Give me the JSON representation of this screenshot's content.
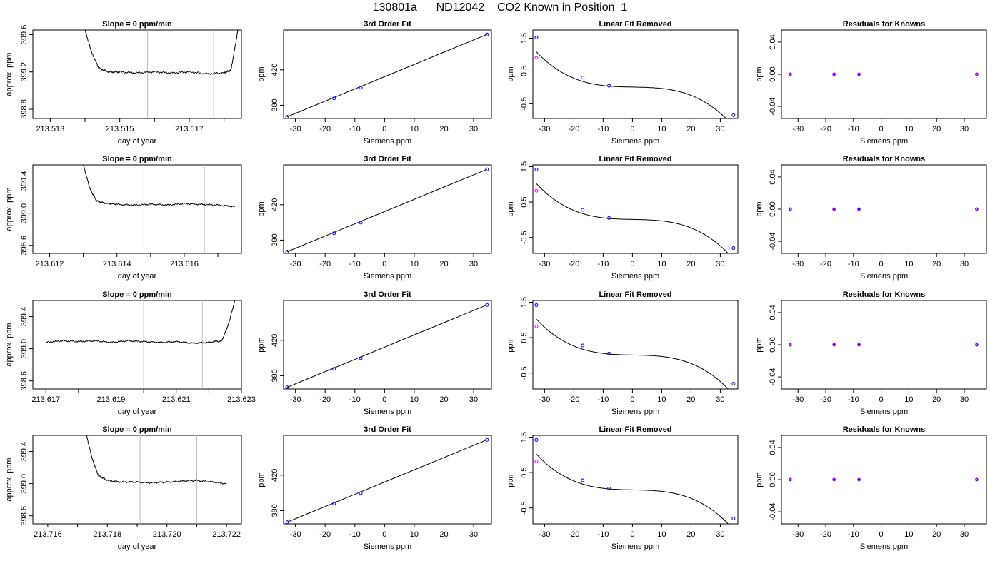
{
  "title": "130801a      ND12042    CO2 Known in Position  1",
  "colors": {
    "line": "#000000",
    "grid": "#bebebe",
    "known": "#0000ff",
    "calc": "#ff00ff"
  },
  "chart_data": [
    {
      "type": "line",
      "row": 0,
      "col": 0,
      "title": "Slope =  0  ppm/min",
      "xlabel": "day of year",
      "ylabel": "approx. ppm",
      "xlim": [
        213.5125,
        213.5185
      ],
      "ylim": [
        398.7,
        399.65
      ],
      "xticks": [
        213.513,
        213.514,
        213.515,
        213.516,
        213.517,
        213.518
      ],
      "xtick_labels": [
        "213.513",
        "",
        "213.515",
        "",
        "213.517",
        ""
      ],
      "yticks": [
        398.8,
        399.2,
        399.6
      ],
      "ytick_labels": [
        "398.8",
        "399.2",
        "399.6"
      ],
      "vlines": [
        213.5158,
        213.5177
      ],
      "x": [
        213.514,
        213.5142,
        213.5144,
        213.5147,
        213.515,
        213.5155,
        213.516,
        213.5165,
        213.517,
        213.5175,
        213.518,
        213.5182,
        213.5184
      ],
      "y": [
        399.65,
        399.4,
        399.24,
        399.2,
        399.2,
        399.19,
        399.2,
        399.19,
        399.2,
        399.18,
        399.19,
        399.22,
        399.65
      ]
    },
    {
      "type": "scatter",
      "row": 0,
      "col": 1,
      "title": "3rd Order Fit",
      "xlabel": "Siemens ppm",
      "ylabel": "ppm",
      "xlim": [
        -34,
        36
      ],
      "ylim": [
        365,
        465
      ],
      "xticks": [
        -30,
        -20,
        -10,
        0,
        10,
        20,
        30
      ],
      "xtick_labels": [
        "-30",
        "-20",
        "-10",
        "0",
        "10",
        "20",
        "30"
      ],
      "yticks": [
        380,
        420
      ],
      "ytick_labels": [
        "380",
        "420"
      ],
      "points": [
        [
          -32.8,
          366.9
        ],
        [
          -17.0,
          387.8
        ],
        [
          -8.0,
          399.8
        ],
        [
          34.5,
          460.0
        ]
      ],
      "fit": [
        [
          -32.8,
          366.9
        ],
        [
          34.5,
          460.0
        ]
      ]
    },
    {
      "type": "scatter",
      "row": 0,
      "col": 2,
      "title": "Linear Fit Removed",
      "xlabel": "Siemens ppm",
      "ylabel": "ppm",
      "xlim": [
        -34,
        36
      ],
      "ylim": [
        -0.95,
        1.75
      ],
      "xticks": [
        -30,
        -20,
        -10,
        0,
        10,
        20,
        30
      ],
      "xtick_labels": [
        "-30",
        "-20",
        "-10",
        "0",
        "10",
        "20",
        "30"
      ],
      "yticks": [
        -0.5,
        0.5,
        1.5
      ],
      "ytick_labels": [
        "-0.5",
        "0.5",
        "1.5"
      ],
      "known": [
        [
          -32.8,
          1.52
        ],
        [
          -17.0,
          0.3
        ],
        [
          -8.0,
          0.05
        ],
        [
          34.5,
          -0.85
        ]
      ],
      "calc": [
        [
          -32.8,
          0.9
        ]
      ],
      "cubic": {
        "a": 0.0097,
        "b": -0.0017,
        "c": 1.87e-05,
        "d": -2.83e-05
      }
    },
    {
      "type": "scatter",
      "row": 0,
      "col": 3,
      "title": "Residuals for Knowns",
      "xlabel": "Siemens ppm",
      "ylabel": "ppm",
      "xlim": [
        -36,
        38
      ],
      "ylim": [
        -0.055,
        0.055
      ],
      "xticks": [
        -30,
        -20,
        -10,
        0,
        10,
        20,
        30
      ],
      "xtick_labels": [
        "-30",
        "-20",
        "-10",
        "0",
        "10",
        "20",
        "30"
      ],
      "yticks": [
        -0.04,
        0.0,
        0.04
      ],
      "ytick_labels": [
        "-0.04",
        "0.00",
        "0.04"
      ],
      "points": [
        [
          -32.8,
          0
        ],
        [
          -17.0,
          0
        ],
        [
          -8.0,
          0
        ],
        [
          34.5,
          0
        ]
      ]
    },
    {
      "type": "line",
      "row": 1,
      "col": 0,
      "title": "Slope =  0  ppm/min",
      "xlabel": "day of year",
      "ylabel": "approx. ppm",
      "xlim": [
        213.6115,
        213.6177
      ],
      "ylim": [
        398.5,
        399.6
      ],
      "xticks": [
        213.612,
        213.613,
        213.614,
        213.615,
        213.616,
        213.617
      ],
      "xtick_labels": [
        "213.612",
        "",
        "213.614",
        "",
        "213.616",
        ""
      ],
      "yticks": [
        398.6,
        399.0,
        399.4
      ],
      "ytick_labels": [
        "398.6",
        "399.0",
        "399.4"
      ],
      "vlines": [
        213.6148,
        213.6166
      ],
      "x": [
        213.613,
        213.6132,
        213.6134,
        213.6137,
        213.614,
        213.6145,
        213.615,
        213.6155,
        213.616,
        213.6165,
        213.617,
        213.6175
      ],
      "y": [
        399.6,
        399.3,
        399.15,
        399.12,
        399.11,
        399.1,
        399.11,
        399.1,
        399.12,
        399.11,
        399.1,
        399.08
      ]
    },
    {
      "type": "scatter",
      "row": 1,
      "col": 1,
      "title": "3rd Order Fit",
      "xlabel": "Siemens ppm",
      "ylabel": "ppm",
      "xlim": [
        -34,
        36
      ],
      "ylim": [
        365,
        465
      ],
      "xticks": [
        -30,
        -20,
        -10,
        0,
        10,
        20,
        30
      ],
      "xtick_labels": [
        "-30",
        "-20",
        "-10",
        "0",
        "10",
        "20",
        "30"
      ],
      "yticks": [
        380,
        420
      ],
      "ytick_labels": [
        "380",
        "420"
      ],
      "points": [
        [
          -32.8,
          366.9
        ],
        [
          -17.0,
          387.8
        ],
        [
          -8.0,
          399.8
        ],
        [
          34.5,
          460.0
        ]
      ],
      "fit": [
        [
          -32.8,
          366.9
        ],
        [
          34.5,
          460.0
        ]
      ]
    },
    {
      "type": "scatter",
      "row": 1,
      "col": 2,
      "title": "Linear Fit Removed",
      "xlabel": "Siemens ppm",
      "ylabel": "ppm",
      "xlim": [
        -34,
        36
      ],
      "ylim": [
        -0.95,
        1.55
      ],
      "xticks": [
        -30,
        -20,
        -10,
        0,
        10,
        20,
        30
      ],
      "xtick_labels": [
        "-30",
        "-20",
        "-10",
        "0",
        "10",
        "20",
        "30"
      ],
      "yticks": [
        -0.5,
        0.5,
        1.5
      ],
      "ytick_labels": [
        "-0.5",
        "0.5",
        "1.5"
      ],
      "known": [
        [
          -32.8,
          1.42
        ],
        [
          -17.0,
          0.28
        ],
        [
          -8.0,
          0.05
        ],
        [
          34.5,
          -0.8
        ]
      ],
      "calc": [
        [
          -32.8,
          0.82
        ]
      ],
      "cubic": {
        "a": 0.0097,
        "b": -0.0017,
        "c": 1.87e-05,
        "d": -2.65e-05
      }
    },
    {
      "type": "scatter",
      "row": 1,
      "col": 3,
      "title": "Residuals for Knowns",
      "xlabel": "Siemens ppm",
      "ylabel": "ppm",
      "xlim": [
        -36,
        38
      ],
      "ylim": [
        -0.055,
        0.055
      ],
      "xticks": [
        -30,
        -20,
        -10,
        0,
        10,
        20,
        30
      ],
      "xtick_labels": [
        "-30",
        "-20",
        "-10",
        "0",
        "10",
        "20",
        "30"
      ],
      "yticks": [
        -0.04,
        0.0,
        0.04
      ],
      "ytick_labels": [
        "-0.04",
        "0.00",
        "0.04"
      ],
      "points": [
        [
          -32.8,
          0
        ],
        [
          -17.0,
          0
        ],
        [
          -8.0,
          0
        ],
        [
          34.5,
          0
        ]
      ]
    },
    {
      "type": "line",
      "row": 2,
      "col": 0,
      "title": "Slope =  0  ppm/min",
      "xlabel": "day of year",
      "ylabel": "approx. ppm",
      "xlim": [
        213.6166,
        213.623
      ],
      "ylim": [
        398.5,
        399.6
      ],
      "xticks": [
        213.617,
        213.618,
        213.619,
        213.62,
        213.621,
        213.622,
        213.623
      ],
      "xtick_labels": [
        "213.617",
        "",
        "213.619",
        "",
        "213.621",
        "",
        "213.623"
      ],
      "yticks": [
        398.6,
        399.0,
        399.4
      ],
      "ytick_labels": [
        "398.6",
        "399.0",
        "399.4"
      ],
      "vlines": [
        213.62,
        213.6218
      ],
      "x": [
        213.617,
        213.6175,
        213.618,
        213.6185,
        213.619,
        213.6195,
        213.62,
        213.6205,
        213.621,
        213.6215,
        213.622,
        213.6224,
        213.6226,
        213.6228
      ],
      "y": [
        399.08,
        399.1,
        399.09,
        399.1,
        399.08,
        399.1,
        399.09,
        399.08,
        399.09,
        399.07,
        399.08,
        399.1,
        399.3,
        399.6
      ]
    },
    {
      "type": "scatter",
      "row": 2,
      "col": 1,
      "title": "3rd Order Fit",
      "xlabel": "Siemens ppm",
      "ylabel": "ppm",
      "xlim": [
        -34,
        36
      ],
      "ylim": [
        365,
        465
      ],
      "xticks": [
        -30,
        -20,
        -10,
        0,
        10,
        20,
        30
      ],
      "xtick_labels": [
        "-30",
        "-20",
        "-10",
        "0",
        "10",
        "20",
        "30"
      ],
      "yticks": [
        380,
        420
      ],
      "ytick_labels": [
        "380",
        "420"
      ],
      "points": [
        [
          -32.8,
          366.9
        ],
        [
          -17.0,
          387.8
        ],
        [
          -8.0,
          399.8
        ],
        [
          34.5,
          460.0
        ]
      ],
      "fit": [
        [
          -32.8,
          366.9
        ],
        [
          34.5,
          460.0
        ]
      ]
    },
    {
      "type": "scatter",
      "row": 2,
      "col": 2,
      "title": "Linear Fit Removed",
      "xlabel": "Siemens ppm",
      "ylabel": "ppm",
      "xlim": [
        -34,
        36
      ],
      "ylim": [
        -0.95,
        1.55
      ],
      "xticks": [
        -30,
        -20,
        -10,
        0,
        10,
        20,
        30
      ],
      "xtick_labels": [
        "-30",
        "-20",
        "-10",
        "0",
        "10",
        "20",
        "30"
      ],
      "yticks": [
        -0.5,
        0.5,
        1.5
      ],
      "ytick_labels": [
        "-0.5",
        "0.5",
        "1.5"
      ],
      "known": [
        [
          -32.8,
          1.42
        ],
        [
          -17.0,
          0.28
        ],
        [
          -8.0,
          0.05
        ],
        [
          34.5,
          -0.8
        ]
      ],
      "calc": [
        [
          -32.8,
          0.82
        ]
      ],
      "cubic": {
        "a": 0.0097,
        "b": -0.0017,
        "c": 1.87e-05,
        "d": -2.65e-05
      }
    },
    {
      "type": "scatter",
      "row": 2,
      "col": 3,
      "title": "Residuals for Knowns",
      "xlabel": "Siemens ppm",
      "ylabel": "ppm",
      "xlim": [
        -36,
        38
      ],
      "ylim": [
        -0.055,
        0.055
      ],
      "xticks": [
        -30,
        -20,
        -10,
        0,
        10,
        20,
        30
      ],
      "xtick_labels": [
        "-30",
        "-20",
        "-10",
        "0",
        "10",
        "20",
        "30"
      ],
      "yticks": [
        -0.04,
        0.0,
        0.04
      ],
      "ytick_labels": [
        "-0.04",
        "0.00",
        "0.04"
      ],
      "points": [
        [
          -32.8,
          0
        ],
        [
          -17.0,
          0
        ],
        [
          -8.0,
          0
        ],
        [
          34.5,
          0
        ]
      ]
    },
    {
      "type": "line",
      "row": 3,
      "col": 0,
      "title": "Slope =  0  ppm/min",
      "xlabel": "day of year",
      "ylabel": "approx. ppm",
      "xlim": [
        213.7155,
        213.7225
      ],
      "ylim": [
        398.5,
        399.6
      ],
      "xticks": [
        213.716,
        213.717,
        213.718,
        213.719,
        213.72,
        213.721,
        213.722
      ],
      "xtick_labels": [
        "213.716",
        "",
        "213.718",
        "",
        "213.720",
        "",
        "213.722"
      ],
      "yticks": [
        398.6,
        399.0,
        399.4
      ],
      "ytick_labels": [
        "398.6",
        "399.0",
        "399.4"
      ],
      "vlines": [
        213.7191,
        213.721
      ],
      "x": [
        213.7173,
        213.7175,
        213.7177,
        213.718,
        213.7185,
        213.719,
        213.7195,
        213.72,
        213.7205,
        213.721,
        213.7215,
        213.722
      ],
      "y": [
        399.6,
        399.3,
        399.1,
        399.04,
        399.02,
        399.02,
        399.01,
        399.02,
        399.03,
        399.04,
        399.02,
        399.0
      ]
    },
    {
      "type": "scatter",
      "row": 3,
      "col": 1,
      "title": "3rd Order Fit",
      "xlabel": "Siemens ppm",
      "ylabel": "ppm",
      "xlim": [
        -34,
        36
      ],
      "ylim": [
        365,
        465
      ],
      "xticks": [
        -30,
        -20,
        -10,
        0,
        10,
        20,
        30
      ],
      "xtick_labels": [
        "-30",
        "-20",
        "-10",
        "0",
        "10",
        "20",
        "30"
      ],
      "yticks": [
        380,
        420
      ],
      "ytick_labels": [
        "380",
        "420"
      ],
      "points": [
        [
          -32.8,
          366.9
        ],
        [
          -17.0,
          387.8
        ],
        [
          -8.0,
          399.8
        ],
        [
          34.5,
          460.0
        ]
      ],
      "fit": [
        [
          -32.8,
          366.9
        ],
        [
          34.5,
          460.0
        ]
      ]
    },
    {
      "type": "scatter",
      "row": 3,
      "col": 2,
      "title": "Linear Fit Removed",
      "xlabel": "Siemens ppm",
      "ylabel": "ppm",
      "xlim": [
        -34,
        36
      ],
      "ylim": [
        -0.95,
        1.55
      ],
      "xticks": [
        -30,
        -20,
        -10,
        0,
        10,
        20,
        30
      ],
      "xtick_labels": [
        "-30",
        "-20",
        "-10",
        "0",
        "10",
        "20",
        "30"
      ],
      "yticks": [
        -0.5,
        0.5,
        1.5
      ],
      "ytick_labels": [
        "-0.5",
        "0.5",
        "1.5"
      ],
      "known": [
        [
          -32.8,
          1.42
        ],
        [
          -17.0,
          0.28
        ],
        [
          -8.0,
          0.05
        ],
        [
          34.5,
          -0.8
        ]
      ],
      "calc": [
        [
          -32.8,
          0.82
        ]
      ],
      "cubic": {
        "a": 0.0097,
        "b": -0.0017,
        "c": 1.87e-05,
        "d": -2.65e-05
      }
    },
    {
      "type": "scatter",
      "row": 3,
      "col": 3,
      "title": "Residuals for Knowns",
      "xlabel": "Siemens ppm",
      "ylabel": "ppm",
      "xlim": [
        -36,
        38
      ],
      "ylim": [
        -0.055,
        0.055
      ],
      "xticks": [
        -30,
        -20,
        -10,
        0,
        10,
        20,
        30
      ],
      "xtick_labels": [
        "-30",
        "-20",
        "-10",
        "0",
        "10",
        "20",
        "30"
      ],
      "yticks": [
        -0.04,
        0.0,
        0.04
      ],
      "ytick_labels": [
        "-0.04",
        "0.00",
        "0.04"
      ],
      "points": [
        [
          -32.8,
          0
        ],
        [
          -17.0,
          0
        ],
        [
          -8.0,
          0
        ],
        [
          34.5,
          0
        ]
      ]
    }
  ]
}
